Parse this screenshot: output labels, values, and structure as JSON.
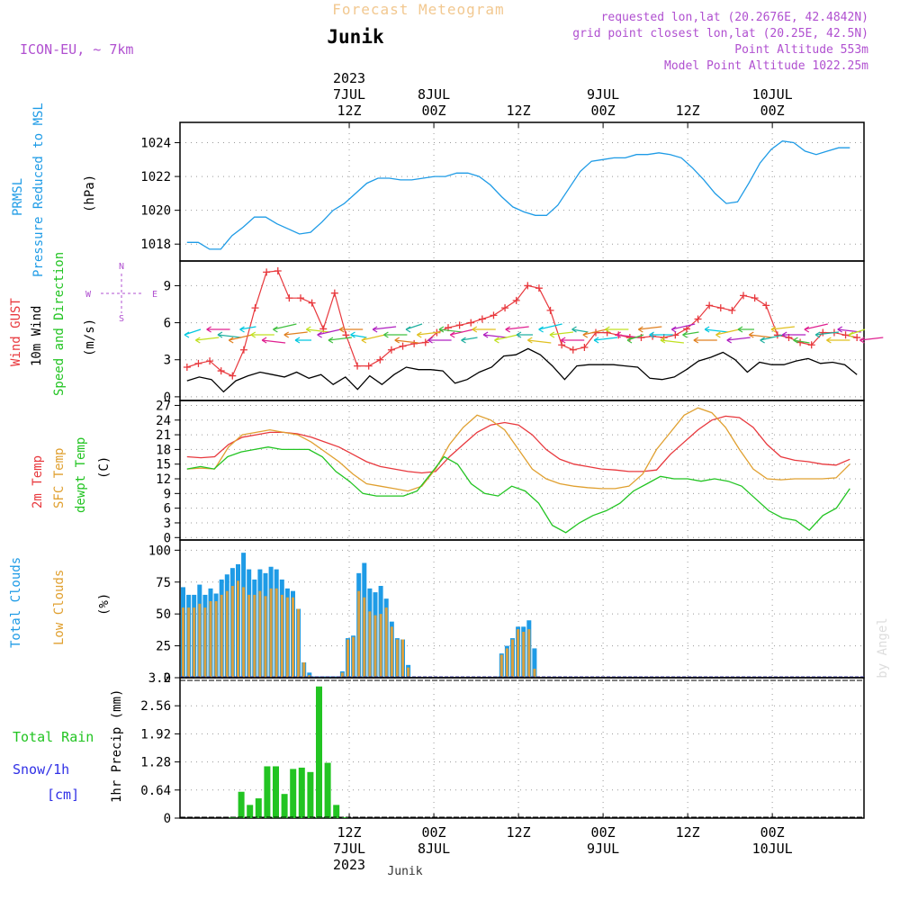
{
  "header": {
    "super_title": "Forecast Meteogram",
    "location": "Junik",
    "model": "ICON-EU, ~ 7km",
    "requested": "requested lon,lat (20.2676E, 42.4842N)",
    "grid_point": "grid point closest lon,lat (20.25E, 42.5N)",
    "point_altitude": "Point Altitude 553m",
    "model_altitude": "Model Point Altitude 1022.25m",
    "footer_label": "Junik",
    "credit": "by Angel"
  },
  "colors": {
    "pressure": "#1e9be6",
    "gust": "#e8383d",
    "wind": "#000000",
    "temp2m": "#e8383d",
    "sfc": "#e0a030",
    "dew": "#22c422",
    "total_clouds": "#1e9be6",
    "low_clouds": "#d8a040",
    "rain": "#22c422",
    "snow": "#3030e6",
    "header_orange": "#f2c890",
    "header_purple": "#b050d0"
  },
  "time_axis": {
    "top": [
      {
        "key": "t12a",
        "hour": 36,
        "lines": [
          "2023",
          "7JUL",
          "12Z"
        ]
      },
      {
        "key": "t00b",
        "hour": 48,
        "lines": [
          "8JUL",
          "00Z"
        ]
      },
      {
        "key": "t12b",
        "hour": 60,
        "lines": [
          "12Z"
        ]
      },
      {
        "key": "t00c",
        "hour": 72,
        "lines": [
          "9JUL",
          "00Z"
        ]
      },
      {
        "key": "t12c",
        "hour": 84,
        "lines": [
          "12Z"
        ]
      },
      {
        "key": "t00d",
        "hour": 96,
        "lines": [
          "10JUL",
          "00Z"
        ]
      }
    ],
    "bottom": [
      {
        "key": "b12a",
        "hour": 36,
        "lines": [
          "12Z",
          "7JUL",
          "2023"
        ]
      },
      {
        "key": "b00b",
        "hour": 48,
        "lines": [
          "00Z",
          "8JUL"
        ]
      },
      {
        "key": "b12b",
        "hour": 60,
        "lines": [
          "12Z"
        ]
      },
      {
        "key": "b00c",
        "hour": 72,
        "lines": [
          "00Z",
          "9JUL"
        ]
      },
      {
        "key": "b12c",
        "hour": 84,
        "lines": [
          "12Z"
        ]
      },
      {
        "key": "b00d",
        "hour": 96,
        "lines": [
          "00Z",
          "10JUL"
        ]
      }
    ]
  },
  "chart_data": [
    {
      "type": "line",
      "panel": "pressure",
      "title": "",
      "ylabel": "(hPa)",
      "side_labels": [
        "PRMSL",
        "Pressure Reduced to MSL"
      ],
      "ylim": [
        1017,
        1025.2
      ],
      "yticks": [
        1018,
        1020,
        1022,
        1024
      ],
      "series": [
        {
          "name": "PRMSL",
          "values": [
            1018.1,
            1018.1,
            1017.7,
            1017.7,
            1018.5,
            1019.0,
            1019.6,
            1019.6,
            1019.2,
            1018.9,
            1018.6,
            1018.7,
            1019.3,
            1020.0,
            1020.4,
            1021.0,
            1021.6,
            1021.9,
            1021.9,
            1021.8,
            1021.8,
            1021.9,
            1022.0,
            1022.0,
            1022.2,
            1022.2,
            1022.0,
            1021.5,
            1020.8,
            1020.2,
            1019.9,
            1019.7,
            1019.7,
            1020.3,
            1021.3,
            1022.3,
            1022.9,
            1023.0,
            1023.1,
            1023.1,
            1023.3,
            1023.3,
            1023.4,
            1023.3,
            1023.1,
            1022.5,
            1021.8,
            1021.0,
            1020.4,
            1020.5,
            1021.6,
            1022.8,
            1023.6,
            1024.1,
            1024.0,
            1023.5,
            1023.3,
            1023.5,
            1023.7,
            1023.7
          ]
        }
      ]
    },
    {
      "type": "line",
      "panel": "wind",
      "title": "",
      "ylabel": "(m/s)",
      "side_labels": [
        "Wind GUST",
        "10m Wind",
        "Speed and Direction"
      ],
      "compass": [
        "N",
        "W",
        "E",
        "S"
      ],
      "ylim": [
        -0.3,
        11
      ],
      "yticks": [
        0,
        3,
        6,
        9
      ],
      "series": [
        {
          "name": "Wind GUST",
          "values": [
            2.4,
            2.7,
            2.9,
            2.1,
            1.7,
            3.8,
            7.2,
            10.1,
            10.2,
            8.0,
            8.0,
            7.6,
            5.5,
            8.4,
            5.0,
            2.5,
            2.5,
            3.0,
            3.8,
            4.1,
            4.3,
            4.4,
            5.2,
            5.6,
            5.8,
            6.0,
            6.3,
            6.6,
            7.2,
            7.8,
            9.0,
            8.8,
            7.0,
            4.2,
            3.8,
            4.0,
            5.2,
            5.2,
            5.0,
            4.8,
            4.8,
            4.9,
            4.8,
            5.0,
            5.5,
            6.3,
            7.4,
            7.2,
            7.0,
            8.2,
            8.0,
            7.4,
            5.0,
            4.8,
            4.4,
            4.2,
            5.2,
            5.2,
            5.0,
            4.8
          ]
        },
        {
          "name": "10m Wind",
          "values": [
            1.3,
            1.6,
            1.4,
            0.4,
            1.3,
            1.7,
            2.0,
            1.8,
            1.6,
            2.0,
            1.5,
            1.8,
            1.0,
            1.6,
            0.6,
            1.7,
            1.0,
            1.8,
            2.4,
            2.2,
            2.2,
            2.1,
            1.1,
            1.4,
            2.0,
            2.4,
            3.3,
            3.4,
            3.9,
            3.4,
            2.5,
            1.4,
            2.5,
            2.6,
            2.6,
            2.6,
            2.5,
            2.4,
            1.5,
            1.4,
            1.6,
            2.2,
            2.9,
            3.2,
            3.6,
            3.0,
            2.0,
            2.8,
            2.6,
            2.6,
            2.9,
            3.1,
            2.7,
            2.8,
            2.6,
            1.8
          ]
        }
      ]
    },
    {
      "type": "line",
      "panel": "temperature",
      "title": "",
      "ylabel": "(C)",
      "side_labels": [
        "2m Temp",
        "SFC Temp",
        "dewpt Temp"
      ],
      "ylim": [
        -0.5,
        28
      ],
      "yticks": [
        0,
        3,
        6,
        9,
        12,
        15,
        18,
        21,
        24,
        27
      ],
      "series": [
        {
          "name": "2m Temp",
          "values": [
            16.5,
            16.3,
            16.5,
            19.0,
            20.5,
            21.0,
            21.5,
            21.5,
            21.2,
            20.5,
            19.5,
            18.5,
            17.0,
            15.5,
            14.5,
            14.0,
            13.5,
            13.2,
            13.5,
            16.5,
            19.0,
            21.5,
            23.0,
            23.5,
            23.0,
            21.0,
            18.0,
            16.0,
            15.0,
            14.5,
            14.0,
            13.8,
            13.5,
            13.5,
            13.8,
            17.0,
            19.5,
            22.0,
            24.0,
            24.8,
            24.5,
            22.5,
            19.0,
            16.5,
            15.8,
            15.5,
            15.0,
            14.8,
            16.0
          ]
        },
        {
          "name": "SFC Temp",
          "values": [
            14.0,
            14.2,
            14.0,
            18.5,
            21.0,
            21.5,
            22.0,
            21.5,
            21.0,
            19.5,
            17.5,
            15.5,
            13.0,
            11.0,
            10.5,
            10.0,
            9.5,
            10.5,
            14.0,
            19.0,
            22.5,
            25.0,
            24.0,
            22.0,
            18.0,
            14.0,
            12.0,
            11.0,
            10.5,
            10.2,
            10.0,
            10.0,
            10.5,
            13.0,
            18.0,
            21.5,
            25.0,
            26.5,
            25.5,
            22.5,
            18.0,
            14.0,
            12.0,
            11.8,
            12.0,
            12.0,
            12.0,
            12.2,
            15.0
          ]
        },
        {
          "name": "dewpt Temp",
          "values": [
            14.0,
            14.5,
            14.0,
            16.5,
            17.5,
            18.0,
            18.5,
            18.0,
            18.0,
            18.0,
            16.5,
            13.5,
            11.5,
            9.0,
            8.5,
            8.5,
            8.5,
            9.5,
            13.0,
            16.5,
            15.0,
            11.0,
            9.0,
            8.5,
            10.5,
            9.5,
            7.0,
            2.5,
            1.0,
            3.0,
            4.5,
            5.5,
            7.0,
            9.5,
            11.0,
            12.5,
            12.0,
            12.0,
            11.5,
            12.0,
            11.5,
            10.5,
            8.0,
            5.5,
            4.0,
            3.5,
            1.5,
            4.5,
            6.0,
            10.0
          ]
        }
      ]
    },
    {
      "type": "bar",
      "panel": "clouds",
      "title": "",
      "ylabel": "(%)",
      "side_labels": [
        "Total Clouds",
        "Low Clouds"
      ],
      "ylim": [
        0,
        108
      ],
      "yticks": [
        0,
        25,
        50,
        75,
        100
      ],
      "series": [
        {
          "name": "Total Clouds",
          "values": [
            71,
            65,
            65,
            73,
            65,
            70,
            66,
            77,
            81,
            86,
            89,
            98,
            85,
            77,
            85,
            82,
            87,
            85,
            77,
            70,
            68,
            54,
            12,
            4,
            1,
            1,
            1,
            1,
            1,
            5,
            31,
            33,
            82,
            90,
            70,
            67,
            72,
            62,
            44,
            31,
            30,
            10,
            0,
            0,
            0,
            0,
            0,
            0,
            0,
            0,
            0,
            0,
            0,
            0,
            0,
            0,
            0,
            1,
            19,
            25,
            31,
            40,
            40,
            45,
            23,
            0,
            0,
            0,
            0,
            0,
            0,
            0,
            0,
            0,
            0,
            0,
            0,
            0,
            0,
            0
          ]
        },
        {
          "name": "Low Clouds",
          "values": [
            55,
            55,
            55,
            58,
            55,
            60,
            60,
            65,
            68,
            72,
            76,
            71,
            65,
            65,
            68,
            64,
            70,
            70,
            65,
            63,
            63,
            54,
            12,
            2,
            0,
            0,
            0,
            0,
            0,
            4,
            30,
            32,
            68,
            63,
            52,
            49,
            50,
            55,
            40,
            30,
            30,
            8,
            0,
            0,
            0,
            0,
            0,
            0,
            0,
            0,
            0,
            0,
            0,
            0,
            0,
            0,
            0,
            1,
            18,
            23,
            30,
            38,
            36,
            38,
            7,
            0,
            0,
            0,
            0,
            0,
            0,
            0,
            0,
            0,
            0,
            0,
            0,
            0,
            0,
            0
          ]
        }
      ]
    },
    {
      "type": "bar",
      "panel": "precip",
      "title": "",
      "ylabel": "1hr Precip (mm)",
      "side_labels": [
        "Total  Rain",
        "Snow/1h",
        "[cm]"
      ],
      "ylim": [
        0,
        3.2
      ],
      "yticks": [
        "0",
        "0.64",
        "1.28",
        "1.92",
        "2.56",
        "3.2"
      ],
      "series": [
        {
          "name": "Total Rain",
          "values": [
            0.02,
            0.6,
            0.3,
            0.45,
            1.18,
            1.18,
            0.55,
            1.12,
            1.15,
            1.05,
            3.0,
            1.26,
            0.3,
            0.02
          ]
        }
      ]
    }
  ]
}
